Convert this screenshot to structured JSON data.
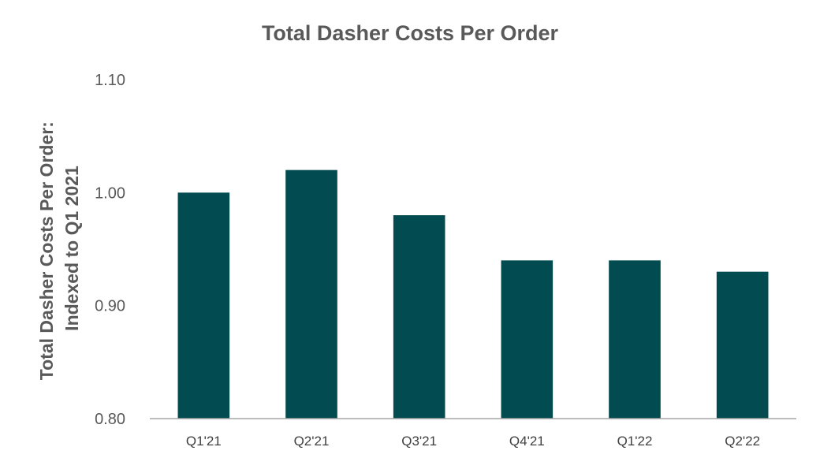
{
  "chart_data": {
    "type": "bar",
    "title": "Total Dasher Costs Per Order",
    "ylabel_lines": [
      "Total Dasher Costs Per Order:",
      "Indexed to Q1 2021"
    ],
    "xlabel": "",
    "categories": [
      "Q1'21",
      "Q2'21",
      "Q3'21",
      "Q4'21",
      "Q1'22",
      "Q2'22"
    ],
    "values": [
      1.0,
      1.02,
      0.98,
      0.94,
      0.94,
      0.93
    ],
    "ylim": [
      0.8,
      1.1
    ],
    "yticks": [
      "0.80",
      "0.90",
      "1.00",
      "1.10"
    ],
    "grid": false,
    "colors": {
      "bar": "#024B50",
      "axis": "#A6A6A6",
      "text": "#595959"
    }
  }
}
